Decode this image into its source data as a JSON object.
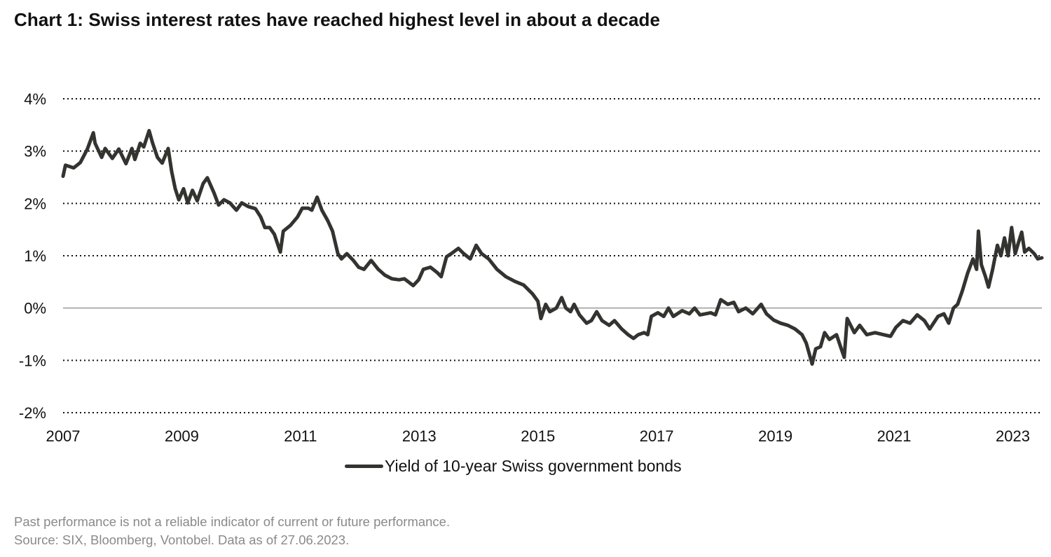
{
  "title": "Chart 1: Swiss interest rates have reached highest level in about a decade",
  "footer": {
    "disclaimer": "Past performance is not a reliable indicator of current or future performance.",
    "source": "Source: SIX, Bloomberg, Vontobel. Data as of 27.06.2023."
  },
  "chart_data": {
    "type": "line",
    "title": "Chart 1: Swiss interest rates have reached highest level in about a decade",
    "xlabel": "",
    "ylabel": "",
    "xlim": [
      2007,
      2023.49
    ],
    "ylim": [
      -2,
      4
    ],
    "x_ticks": [
      "2007",
      "2009",
      "2011",
      "2013",
      "2015",
      "2017",
      "2019",
      "2021",
      "2023"
    ],
    "y_ticks": [
      "4%",
      "3%",
      "2%",
      "1%",
      "0%",
      "-1%",
      "-2%"
    ],
    "grid": "horizontal dotted",
    "legend_position": "bottom",
    "line_color": "#333330",
    "series": [
      {
        "name": "Yield of 10-year Swiss government bonds",
        "x": [
          2007.0,
          2007.04,
          2007.18,
          2007.29,
          2007.41,
          2007.51,
          2007.54,
          2007.65,
          2007.71,
          2007.83,
          2007.94,
          2008.06,
          2008.16,
          2008.21,
          2008.3,
          2008.36,
          2008.45,
          2008.51,
          2008.59,
          2008.67,
          2008.77,
          2008.83,
          2008.89,
          2008.95,
          2009.03,
          2009.1,
          2009.18,
          2009.26,
          2009.36,
          2009.43,
          2009.54,
          2009.62,
          2009.71,
          2009.81,
          2009.92,
          2010.01,
          2010.12,
          2010.24,
          2010.33,
          2010.4,
          2010.48,
          2010.56,
          2010.66,
          2010.71,
          2010.83,
          2010.95,
          2011.03,
          2011.13,
          2011.19,
          2011.28,
          2011.36,
          2011.46,
          2011.54,
          2011.63,
          2011.69,
          2011.78,
          2011.89,
          2011.98,
          2012.07,
          2012.19,
          2012.31,
          2012.42,
          2012.54,
          2012.66,
          2012.75,
          2012.9,
          2012.99,
          2013.07,
          2013.19,
          2013.31,
          2013.37,
          2013.46,
          2013.54,
          2013.66,
          2013.75,
          2013.86,
          2013.96,
          2014.05,
          2014.17,
          2014.31,
          2014.46,
          2014.61,
          2014.76,
          2014.91,
          2015.0,
          2015.05,
          2015.13,
          2015.2,
          2015.31,
          2015.4,
          2015.47,
          2015.55,
          2015.61,
          2015.7,
          2015.82,
          2015.9,
          2015.99,
          2016.08,
          2016.2,
          2016.29,
          2016.41,
          2016.52,
          2016.61,
          2016.69,
          2016.79,
          2016.85,
          2016.91,
          2017.02,
          2017.12,
          2017.2,
          2017.28,
          2017.43,
          2017.55,
          2017.64,
          2017.73,
          2017.91,
          2017.99,
          2018.08,
          2018.2,
          2018.3,
          2018.38,
          2018.5,
          2018.62,
          2018.76,
          2018.85,
          2018.97,
          2019.09,
          2019.21,
          2019.33,
          2019.45,
          2019.52,
          2019.62,
          2019.68,
          2019.76,
          2019.83,
          2019.91,
          2020.03,
          2020.11,
          2020.16,
          2020.21,
          2020.33,
          2020.42,
          2020.54,
          2020.68,
          2020.82,
          2020.94,
          2021.03,
          2021.15,
          2021.27,
          2021.39,
          2021.51,
          2021.6,
          2021.74,
          2021.84,
          2021.92,
          2022.0,
          2022.07,
          2022.15,
          2022.24,
          2022.33,
          2022.39,
          2022.42,
          2022.47,
          2022.54,
          2022.59,
          2022.66,
          2022.74,
          2022.8,
          2022.86,
          2022.92,
          2022.98,
          2023.04,
          2023.09,
          2023.15,
          2023.2,
          2023.27,
          2023.36,
          2023.42,
          2023.49
        ],
        "values": [
          2.52,
          2.73,
          2.68,
          2.78,
          3.04,
          3.35,
          3.15,
          2.88,
          3.05,
          2.86,
          3.04,
          2.76,
          3.05,
          2.84,
          3.15,
          3.08,
          3.39,
          3.15,
          2.88,
          2.77,
          3.05,
          2.61,
          2.28,
          2.07,
          2.28,
          2.01,
          2.25,
          2.05,
          2.38,
          2.49,
          2.21,
          1.97,
          2.07,
          2.01,
          1.87,
          2.01,
          1.94,
          1.9,
          1.74,
          1.54,
          1.54,
          1.41,
          1.07,
          1.47,
          1.58,
          1.74,
          1.91,
          1.91,
          1.87,
          2.12,
          1.87,
          1.67,
          1.47,
          1.04,
          0.94,
          1.04,
          0.91,
          0.78,
          0.74,
          0.91,
          0.74,
          0.63,
          0.56,
          0.54,
          0.56,
          0.43,
          0.54,
          0.74,
          0.78,
          0.67,
          0.6,
          0.98,
          1.04,
          1.14,
          1.04,
          0.94,
          1.2,
          1.04,
          0.94,
          0.74,
          0.6,
          0.51,
          0.44,
          0.27,
          0.13,
          -0.2,
          0.07,
          -0.07,
          0.0,
          0.2,
          0.0,
          -0.07,
          0.07,
          -0.13,
          -0.29,
          -0.24,
          -0.07,
          -0.24,
          -0.33,
          -0.24,
          -0.4,
          -0.51,
          -0.58,
          -0.51,
          -0.47,
          -0.51,
          -0.16,
          -0.09,
          -0.16,
          0.0,
          -0.16,
          -0.05,
          -0.11,
          0.0,
          -0.13,
          -0.09,
          -0.13,
          0.16,
          0.07,
          0.11,
          -0.07,
          0.0,
          -0.11,
          0.07,
          -0.11,
          -0.23,
          -0.29,
          -0.33,
          -0.4,
          -0.51,
          -0.67,
          -1.07,
          -0.78,
          -0.74,
          -0.47,
          -0.6,
          -0.51,
          -0.78,
          -0.94,
          -0.2,
          -0.47,
          -0.33,
          -0.51,
          -0.47,
          -0.51,
          -0.54,
          -0.37,
          -0.24,
          -0.29,
          -0.13,
          -0.24,
          -0.4,
          -0.16,
          -0.11,
          -0.29,
          0.0,
          0.07,
          0.33,
          0.67,
          0.94,
          0.74,
          1.47,
          0.83,
          0.6,
          0.4,
          0.74,
          1.2,
          1.0,
          1.34,
          1.0,
          1.54,
          1.04,
          1.23,
          1.45,
          1.07,
          1.14,
          1.04,
          0.94,
          0.96
        ]
      }
    ]
  }
}
